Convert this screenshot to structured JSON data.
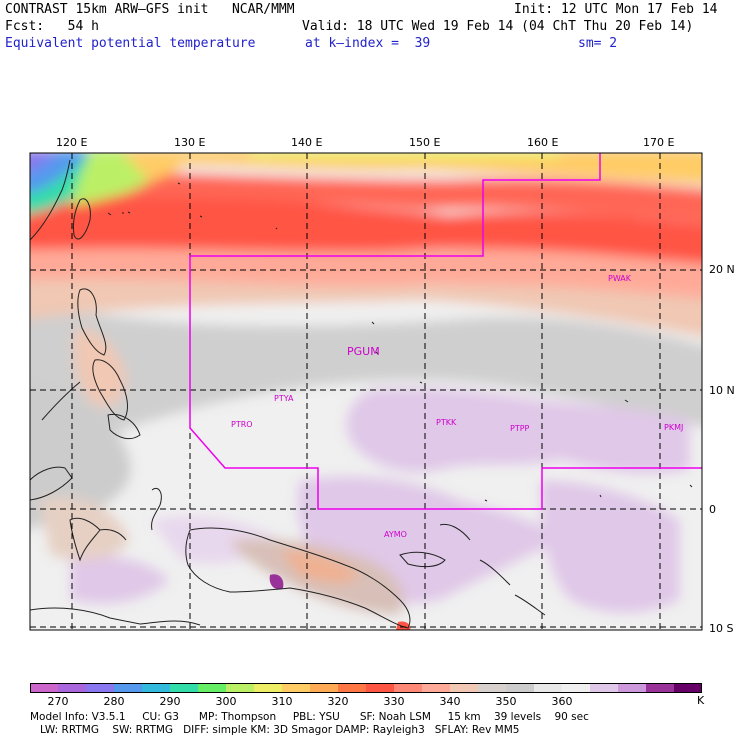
{
  "header": {
    "title_line": "CONTRAST 15km ARW–GFS init   NCAR/MMM",
    "fcst_line": "Fcst:   54 h",
    "field_name": "Equivalent potential temperature",
    "init_line": "Init: 12 UTC Mon 17 Feb 14",
    "valid_line": "Valid: 18 UTC Wed 19 Feb 14 (04 ChT Thu 20 Feb 14)",
    "level_line": "at k–index =  39",
    "smooth_line": "sm= 2"
  },
  "map": {
    "lon_labels": [
      "120 E",
      "130 E",
      "140 E",
      "150 E",
      "160 E",
      "170 E"
    ],
    "lat_labels": [
      "20 N",
      "10 N",
      "0",
      "10 S"
    ],
    "stations": [
      "PWAK",
      "PGUM",
      "PTYA",
      "PTRO",
      "PTKK",
      "PTPP",
      "PKMJ",
      "AYMO"
    ]
  },
  "colorbar": {
    "labels": [
      "270",
      "280",
      "290",
      "300",
      "310",
      "320",
      "330",
      "340",
      "350",
      "360"
    ],
    "unit": "K",
    "colors": [
      "#cc66cc",
      "#aa66dd",
      "#8877ee",
      "#5599ee",
      "#33bbdd",
      "#33ddaa",
      "#66ee66",
      "#bbf066",
      "#eeee66",
      "#ffcc66",
      "#ffaa55",
      "#ff7744",
      "#ff5544",
      "#ff8877",
      "#ffaa99",
      "#f0c8b4",
      "#d8d0cc",
      "#cccccc",
      "#e8e8e8",
      "#f0f0f0",
      "#e0c8e8",
      "#cc99dd",
      "#993399",
      "#660066"
    ]
  },
  "model_info": {
    "line1": "Model Info: V3.5.1     CU: G3      MP: Thompson     PBL: YSU      SF: Noah LSM     15 km    39 levels    90 sec",
    "line2": "   LW: RRTMG    SW: RRTMG   DIFF: simple KM: 3D Smagor DAMP: Rayleigh3   SFLAY: Rev MM5"
  }
}
